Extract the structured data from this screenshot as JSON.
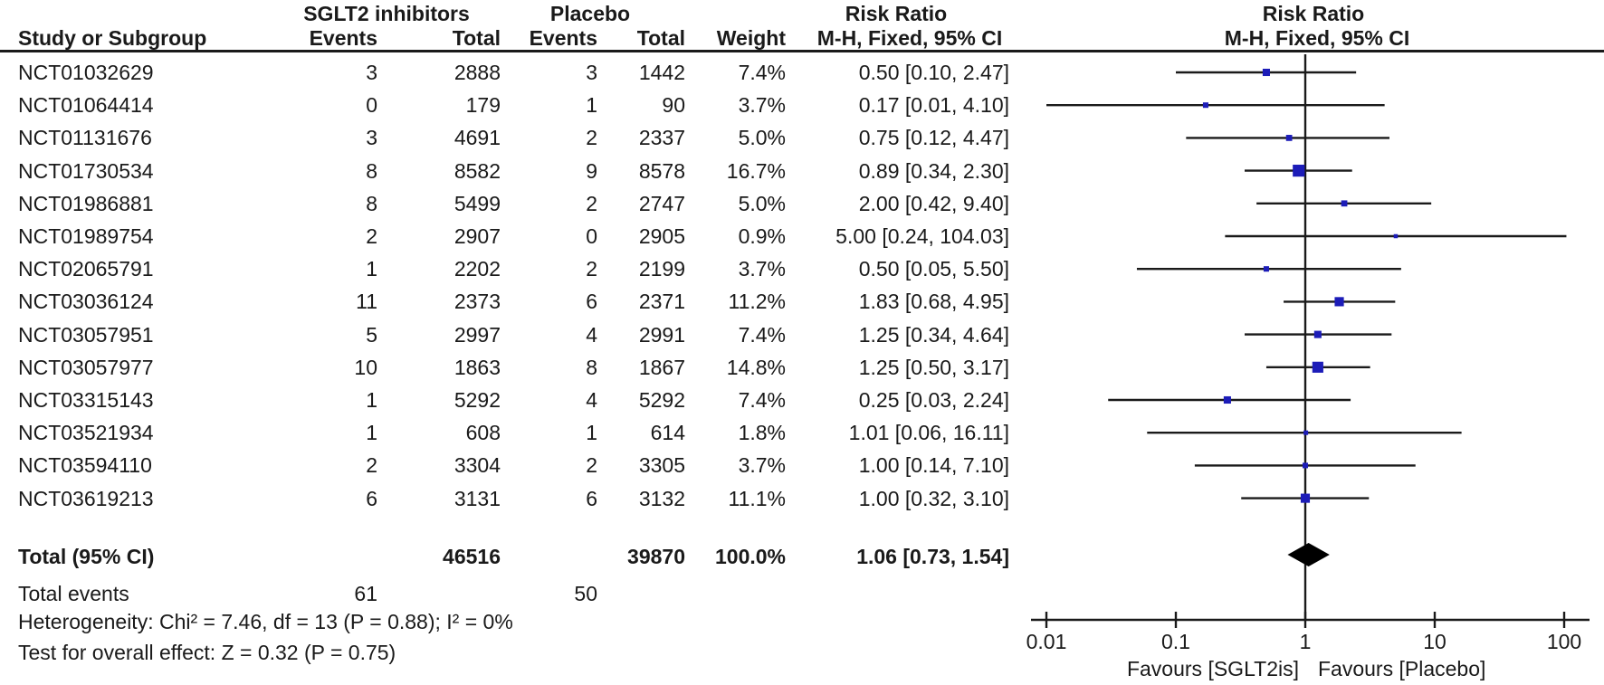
{
  "header": {
    "group_treatment": "SGLT2 inhibitors",
    "group_control": "Placebo",
    "risk_ratio_left": "Risk Ratio",
    "risk_ratio_right": "Risk Ratio"
  },
  "columns": {
    "study": "Study or Subgroup",
    "events1": "Events",
    "total1": "Total",
    "events2": "Events",
    "total2": "Total",
    "weight": "Weight",
    "ci": "M-H, Fixed, 95% CI",
    "ci_plot": "M-H, Fixed, 95% CI"
  },
  "chart_data": {
    "type": "forest",
    "effect_measure": "Risk Ratio",
    "method": "Mantel-Haenszel, Fixed effects, 95% CI",
    "x_scale": "log",
    "xlim": [
      0.01,
      100
    ],
    "studies": [
      {
        "study": "NCT01032629",
        "events1": "3",
        "total1": "2888",
        "events2": "3",
        "total2": "1442",
        "weight": "7.4%",
        "weight_num": 7.4,
        "ci_text": "0.50 [0.10, 2.47]",
        "rr": 0.5,
        "ci_low": 0.1,
        "ci_high": 2.47
      },
      {
        "study": "NCT01064414",
        "events1": "0",
        "total1": "179",
        "events2": "1",
        "total2": "90",
        "weight": "3.7%",
        "weight_num": 3.7,
        "ci_text": "0.17 [0.01, 4.10]",
        "rr": 0.17,
        "ci_low": 0.01,
        "ci_high": 4.1
      },
      {
        "study": "NCT01131676",
        "events1": "3",
        "total1": "4691",
        "events2": "2",
        "total2": "2337",
        "weight": "5.0%",
        "weight_num": 5.0,
        "ci_text": "0.75 [0.12, 4.47]",
        "rr": 0.75,
        "ci_low": 0.12,
        "ci_high": 4.47
      },
      {
        "study": "NCT01730534",
        "events1": "8",
        "total1": "8582",
        "events2": "9",
        "total2": "8578",
        "weight": "16.7%",
        "weight_num": 16.7,
        "ci_text": "0.89 [0.34, 2.30]",
        "rr": 0.89,
        "ci_low": 0.34,
        "ci_high": 2.3
      },
      {
        "study": "NCT01986881",
        "events1": "8",
        "total1": "5499",
        "events2": "2",
        "total2": "2747",
        "weight": "5.0%",
        "weight_num": 5.0,
        "ci_text": "2.00 [0.42, 9.40]",
        "rr": 2.0,
        "ci_low": 0.42,
        "ci_high": 9.4
      },
      {
        "study": "NCT01989754",
        "events1": "2",
        "total1": "2907",
        "events2": "0",
        "total2": "2905",
        "weight": "0.9%",
        "weight_num": 0.9,
        "ci_text": "5.00 [0.24, 104.03]",
        "rr": 5.0,
        "ci_low": 0.24,
        "ci_high": 104.03
      },
      {
        "study": "NCT02065791",
        "events1": "1",
        "total1": "2202",
        "events2": "2",
        "total2": "2199",
        "weight": "3.7%",
        "weight_num": 3.7,
        "ci_text": "0.50 [0.05, 5.50]",
        "rr": 0.5,
        "ci_low": 0.05,
        "ci_high": 5.5
      },
      {
        "study": "NCT03036124",
        "events1": "11",
        "total1": "2373",
        "events2": "6",
        "total2": "2371",
        "weight": "11.2%",
        "weight_num": 11.2,
        "ci_text": "1.83 [0.68, 4.95]",
        "rr": 1.83,
        "ci_low": 0.68,
        "ci_high": 4.95
      },
      {
        "study": "NCT03057951",
        "events1": "5",
        "total1": "2997",
        "events2": "4",
        "total2": "2991",
        "weight": "7.4%",
        "weight_num": 7.4,
        "ci_text": "1.25 [0.34, 4.64]",
        "rr": 1.25,
        "ci_low": 0.34,
        "ci_high": 4.64
      },
      {
        "study": "NCT03057977",
        "events1": "10",
        "total1": "1863",
        "events2": "8",
        "total2": "1867",
        "weight": "14.8%",
        "weight_num": 14.8,
        "ci_text": "1.25 [0.50, 3.17]",
        "rr": 1.25,
        "ci_low": 0.5,
        "ci_high": 3.17
      },
      {
        "study": "NCT03315143",
        "events1": "1",
        "total1": "5292",
        "events2": "4",
        "total2": "5292",
        "weight": "7.4%",
        "weight_num": 7.4,
        "ci_text": "0.25 [0.03, 2.24]",
        "rr": 0.25,
        "ci_low": 0.03,
        "ci_high": 2.24
      },
      {
        "study": "NCT03521934",
        "events1": "1",
        "total1": "608",
        "events2": "1",
        "total2": "614",
        "weight": "1.8%",
        "weight_num": 1.8,
        "ci_text": "1.01 [0.06, 16.11]",
        "rr": 1.01,
        "ci_low": 0.06,
        "ci_high": 16.11
      },
      {
        "study": "NCT03594110",
        "events1": "2",
        "total1": "3304",
        "events2": "2",
        "total2": "3305",
        "weight": "3.7%",
        "weight_num": 3.7,
        "ci_text": "1.00 [0.14, 7.10]",
        "rr": 1.0,
        "ci_low": 0.14,
        "ci_high": 7.1
      },
      {
        "study": "NCT03619213",
        "events1": "6",
        "total1": "3131",
        "events2": "6",
        "total2": "3132",
        "weight": "11.1%",
        "weight_num": 11.1,
        "ci_text": "1.00 [0.32, 3.10]",
        "rr": 1.0,
        "ci_low": 0.32,
        "ci_high": 3.1
      }
    ],
    "total": {
      "label": "Total (95% CI)",
      "total1": "46516",
      "total2": "39870",
      "weight": "100.0%",
      "ci_text": "1.06 [0.73, 1.54]",
      "rr": 1.06,
      "ci_low": 0.73,
      "ci_high": 1.54
    },
    "total_events": {
      "label": "Total events",
      "events1": "61",
      "events2": "50"
    },
    "footnotes": [
      "Heterogeneity: Chi² = 7.46, df = 13 (P = 0.88); I² = 0%",
      "Test for overall effect: Z = 0.32 (P = 0.75)"
    ],
    "axis": {
      "ticks": [
        {
          "value": 0.01,
          "label": "0.01"
        },
        {
          "value": 0.1,
          "label": "0.1"
        },
        {
          "value": 1,
          "label": "1"
        },
        {
          "value": 10,
          "label": "10"
        },
        {
          "value": 100,
          "label": "100"
        }
      ],
      "favours_left": "Favours [SGLT2is]",
      "favours_right": "Favours [Placebo]"
    },
    "colors": {
      "marker": "#1c1cb8",
      "line": "#1a1a1a",
      "diamond": "#000000"
    }
  }
}
